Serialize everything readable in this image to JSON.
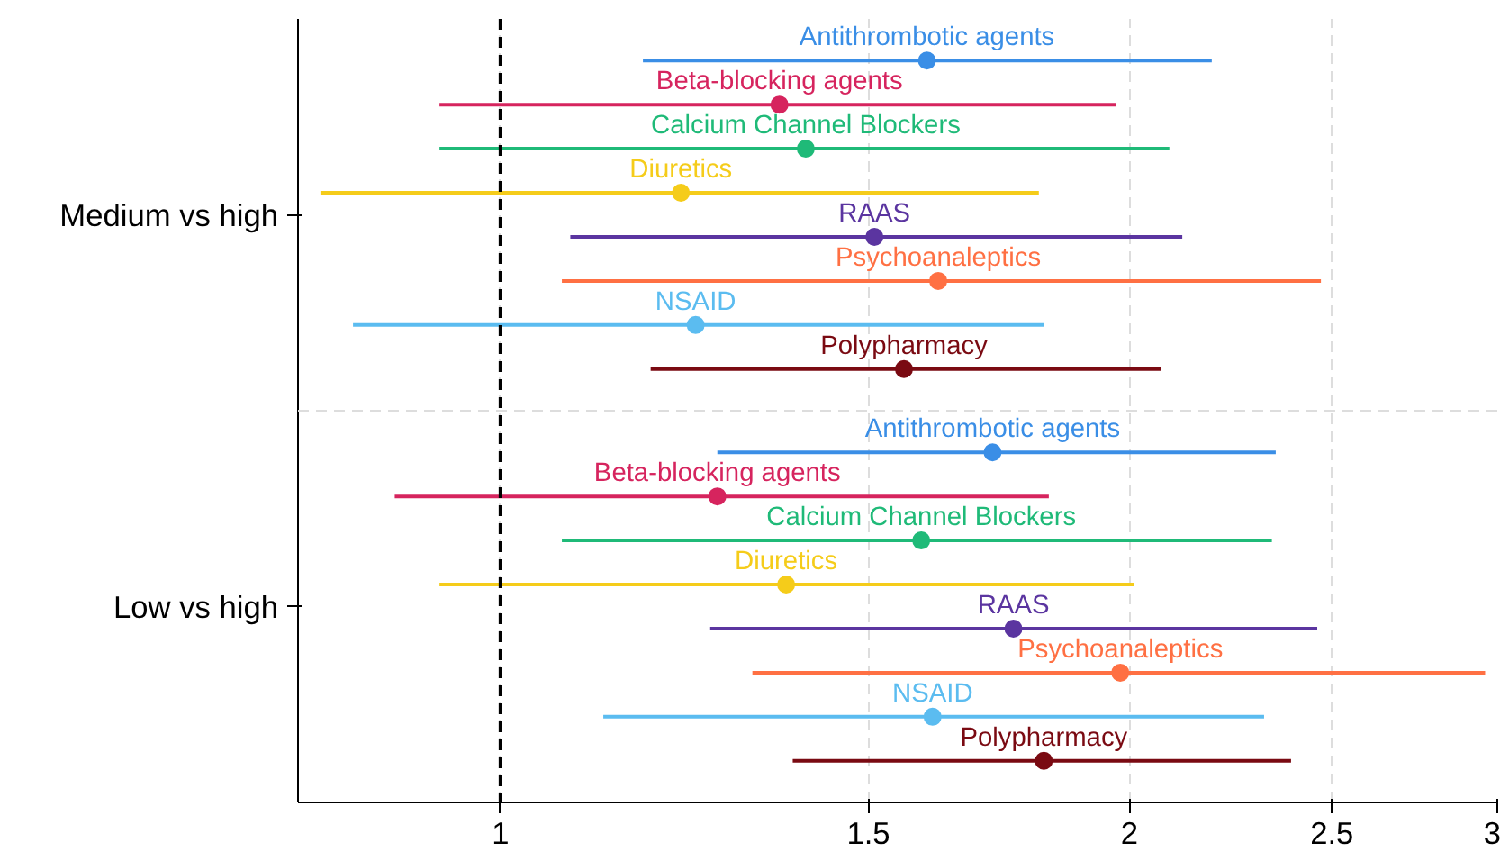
{
  "chart_data": {
    "type": "scatter",
    "orientation": "horizontal",
    "log": "x",
    "marker": "circle",
    "grid": "x",
    "categories": [
      "Medium vs high",
      "Low vs high"
    ],
    "xlim": [
      0.8,
      3
    ],
    "xticks": [
      1,
      1.5,
      2,
      2.5,
      3
    ],
    "ref_lines": [
      {
        "axis": "x",
        "value": 1,
        "color": "#000000",
        "line_style": "dashed"
      }
    ],
    "series": [
      {
        "name": "Antithrombotic agents",
        "color": "#3a8ee6",
        "values": [
          1.6,
          1.72
        ],
        "errors": [
          [
            1.17,
            2.19
          ],
          [
            1.27,
            2.35
          ]
        ]
      },
      {
        "name": "Beta-blocking agents",
        "color": "#d6245e",
        "values": [
          1.36,
          1.27
        ],
        "errors": [
          [
            0.935,
            1.97
          ],
          [
            0.89,
            1.83
          ]
        ]
      },
      {
        "name": "Calcium Channel Blockers",
        "color": "#1fba78",
        "values": [
          1.4,
          1.59
        ],
        "errors": [
          [
            0.935,
            2.09
          ],
          [
            1.07,
            2.34
          ]
        ]
      },
      {
        "name": "Diuretics",
        "color": "#f5cc1a",
        "values": [
          1.22,
          1.37
        ],
        "errors": [
          [
            0.82,
            1.81
          ],
          [
            0.935,
            2.01
          ]
        ]
      },
      {
        "name": "RAAS",
        "color": "#5b35a0",
        "values": [
          1.51,
          1.76
        ],
        "errors": [
          [
            1.08,
            2.12
          ],
          [
            1.26,
            2.46
          ]
        ]
      },
      {
        "name": "Psychoanaleptics",
        "color": "#ff7043",
        "values": [
          1.62,
          1.98
        ],
        "errors": [
          [
            1.07,
            2.47
          ],
          [
            1.32,
            2.96
          ]
        ]
      },
      {
        "name": "NSAID",
        "color": "#5bbcf0",
        "values": [
          1.24,
          1.61
        ],
        "errors": [
          [
            0.85,
            1.82
          ],
          [
            1.12,
            2.32
          ]
        ]
      },
      {
        "name": "Polypharmacy",
        "color": "#7a0a12",
        "values": [
          1.56,
          1.82
        ],
        "errors": [
          [
            1.18,
            2.07
          ],
          [
            1.38,
            2.39
          ]
        ]
      }
    ]
  }
}
